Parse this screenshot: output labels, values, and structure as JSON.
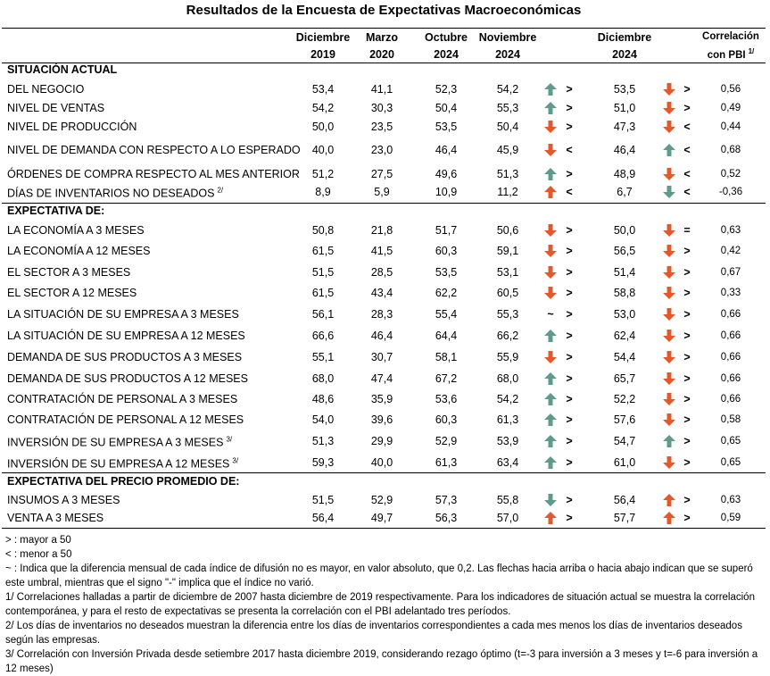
{
  "title": "Resultados de la Encuesta de Expectativas Macroeconómicas",
  "header": {
    "columns": [
      [
        "Diciembre",
        "2019"
      ],
      [
        "Marzo",
        "2020"
      ],
      [
        "Octubre",
        "2024"
      ],
      [
        "Noviembre",
        "2024"
      ],
      [
        "Diciembre",
        "2024"
      ]
    ],
    "corr": "Correlación",
    "corr2": "con PBI",
    "corr_sup": "1/"
  },
  "sections": [
    {
      "title": "SITUACIÓN ACTUAL",
      "rows": [
        {
          "label": "DEL NEGOCIO",
          "values": [
            "53,4",
            "41,1",
            "52,3",
            "54,2"
          ],
          "nov_cmp": ">",
          "dic": "53,5",
          "dic_cmp": ">",
          "corr": "0,56"
        },
        {
          "label": "NIVEL DE VENTAS",
          "values": [
            "54,2",
            "30,3",
            "50,4",
            "55,3"
          ],
          "nov_cmp": ">",
          "dic": "51,0",
          "dic_cmp": ">",
          "corr": "0,49"
        },
        {
          "label": "NIVEL DE PRODUCCIÓN",
          "values": [
            "50,0",
            "23,5",
            "53,5",
            "50,4"
          ],
          "nov_cmp": ">",
          "dic": "47,3",
          "dic_cmp": "<",
          "corr": "0,44"
        },
        {
          "label": "NIVEL DE DEMANDA CON RESPECTO A LO ESPERADO",
          "values": [
            "40,0",
            "23,0",
            "46,4",
            "45,9"
          ],
          "nov_cmp": "<",
          "dic": "46,4",
          "dic_cmp": "<",
          "corr": "0,68"
        },
        {
          "label": "ÓRDENES DE COMPRA RESPECTO AL MES ANTERIOR",
          "values": [
            "51,2",
            "27,5",
            "49,6",
            "51,3"
          ],
          "nov_cmp": ">",
          "dic": "48,9",
          "dic_cmp": "<",
          "corr": "0,52"
        },
        {
          "label": "DÍAS DE INVENTARIOS NO DESEADOS",
          "sup": "2/",
          "values": [
            "8,9",
            "5,9",
            "10,9",
            "11,2"
          ],
          "nov_cmp": "<",
          "dic": "6,7",
          "dic_cmp": "<",
          "corr": "-0,36"
        }
      ]
    },
    {
      "title": "EXPECTATIVA DE:",
      "rows": [
        {
          "label": "LA ECONOMÍA A 3 MESES",
          "values": [
            "50,8",
            "21,8",
            "51,7",
            "50,6"
          ],
          "nov_cmp": ">",
          "dic": "50,0",
          "dic_cmp": "=",
          "corr": "0,63"
        },
        {
          "label": "LA ECONOMÍA A 12 MESES",
          "values": [
            "61,5",
            "41,5",
            "60,3",
            "59,1"
          ],
          "nov_cmp": ">",
          "dic": "56,5",
          "dic_cmp": ">",
          "corr": "0,42"
        },
        {
          "label": "EL SECTOR A 3 MESES",
          "values": [
            "51,5",
            "28,5",
            "53,5",
            "53,1"
          ],
          "nov_cmp": ">",
          "dic": "51,4",
          "dic_cmp": ">",
          "corr": "0,67"
        },
        {
          "label": "EL SECTOR A 12 MESES",
          "values": [
            "61,5",
            "43,4",
            "62,2",
            "60,5"
          ],
          "nov_cmp": ">",
          "dic": "58,8",
          "dic_cmp": ">",
          "corr": "0,33"
        },
        {
          "label": "LA SITUACIÓN DE SU EMPRESA A 3 MESES",
          "values": [
            "56,1",
            "28,3",
            "55,4",
            "55,3"
          ],
          "nov_mark": "~",
          "nov_cmp": ">",
          "dic": "53,0",
          "dic_cmp": ">",
          "corr": "0,66"
        },
        {
          "label": "LA SITUACIÓN DE SU EMPRESA A 12 MESES",
          "values": [
            "66,6",
            "46,4",
            "64,4",
            "66,2"
          ],
          "nov_cmp": ">",
          "dic": "62,4",
          "dic_cmp": ">",
          "corr": "0,66"
        },
        {
          "label": "DEMANDA DE SUS PRODUCTOS A 3 MESES",
          "values": [
            "55,1",
            "30,7",
            "58,1",
            "55,9"
          ],
          "nov_cmp": ">",
          "dic": "54,4",
          "dic_cmp": ">",
          "corr": "0,66"
        },
        {
          "label": "DEMANDA DE SUS PRODUCTOS A 12 MESES",
          "values": [
            "68,0",
            "47,4",
            "67,2",
            "68,0"
          ],
          "nov_cmp": ">",
          "dic": "65,7",
          "dic_cmp": ">",
          "corr": "0,66"
        },
        {
          "label": "CONTRATACIÓN DE PERSONAL A 3 MESES",
          "values": [
            "48,6",
            "35,9",
            "53,6",
            "54,2"
          ],
          "nov_cmp": ">",
          "dic": "52,2",
          "dic_cmp": ">",
          "corr": "0,66"
        },
        {
          "label": "CONTRATACIÓN DE PERSONAL A 12 MESES",
          "values": [
            "54,0",
            "39,6",
            "60,3",
            "61,3"
          ],
          "nov_cmp": ">",
          "dic": "57,6",
          "dic_cmp": ">",
          "corr": "0,58"
        },
        {
          "label": "INVERSIÓN DE SU EMPRESA A 3 MESES",
          "sup": "3/",
          "values": [
            "51,3",
            "29,9",
            "52,9",
            "53,9"
          ],
          "nov_cmp": ">",
          "dic": "54,7",
          "dic_cmp": ">",
          "corr": "0,65"
        },
        {
          "label": "INVERSIÓN DE SU EMPRESA A 12 MESES",
          "sup": "3/",
          "values": [
            "59,3",
            "40,0",
            "61,3",
            "63,4"
          ],
          "nov_cmp": ">",
          "dic": "61,0",
          "dic_cmp": ">",
          "corr": "0,65"
        }
      ]
    },
    {
      "title": "EXPECTATIVA DEL PRECIO PROMEDIO DE:",
      "rows": [
        {
          "label": "INSUMOS A 3 MESES",
          "values": [
            "51,5",
            "52,9",
            "57,3",
            "55,8"
          ],
          "nov_cmp": ">",
          "dic": "56,4",
          "dic_cmp": ">",
          "corr": "0,63"
        },
        {
          "label": "VENTA A 3 MESES",
          "values": [
            "56,4",
            "49,7",
            "56,3",
            "57,0"
          ],
          "nov_cmp": ">",
          "dic": "57,7",
          "dic_cmp": ">",
          "corr": "0,59"
        }
      ]
    }
  ],
  "notes": [
    "> : mayor a 50",
    "< : menor a 50",
    "~ : Indica que la diferencia mensual de cada índice de difusión no es mayor, en valor absoluto, que 0,2. Las flechas hacia arriba o hacia abajo indican que se superó este umbral, mientras que el signo \"-\" implica que el índice no varió.",
    "1/ Correlaciones halladas a partir de diciembre de 2007 hasta diciembre de 2019 respectivamente. Para los indicadores de situación actual se muestra la correlación contemporánea, y para el resto de expectativas se presenta la correlación con el PBI adelantado tres períodos.",
    "2/ Los días de inventarios no deseados muestran la diferencia entre los días de inventarios correspondientes a cada mes menos los días de inventarios deseados según las empresas.",
    "3/ Correlación con Inversión Privada desde setiembre 2017 hasta diciembre 2019, considerando rezago óptimo (t=-3 para inversión a 3 meses y t=-6 para inversión a 12 meses)"
  ]
}
